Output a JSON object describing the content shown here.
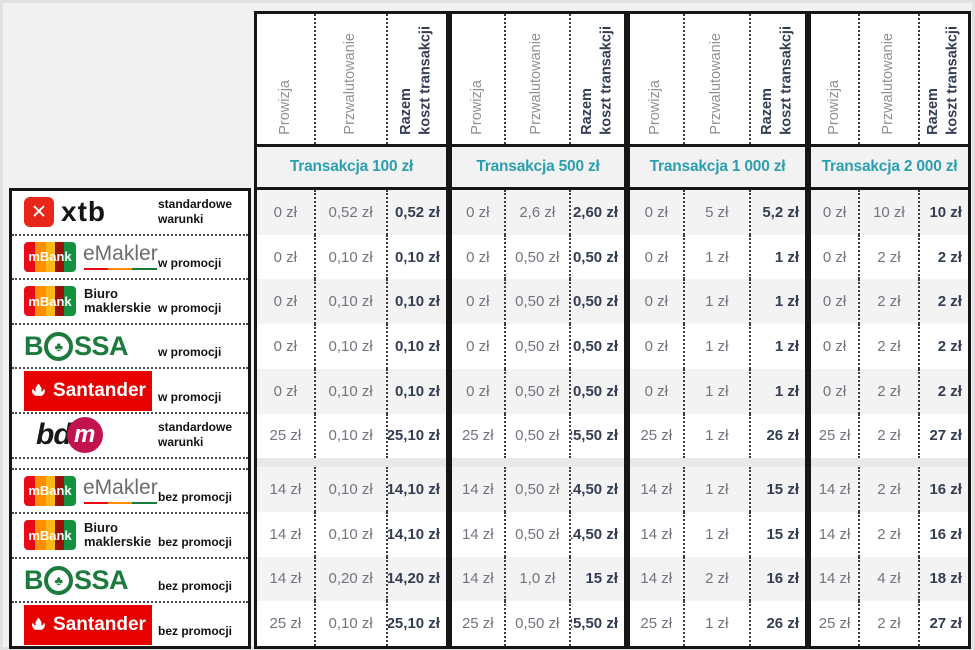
{
  "table": {
    "column_headers": [
      "Prowizja",
      "Przwalutowanie",
      "Razem\nkoszt transakcji"
    ],
    "groups": [
      "Transakcja 100 zł",
      "Transakcja 500 zł",
      "Transakcja 1 000 zł",
      "Transakcja 2 000 zł"
    ],
    "rows": [
      {
        "broker": "XTB",
        "logo": "xtb-logo",
        "note": "standardowe warunki",
        "values": [
          "0 zł",
          "0,52 zł",
          "0,52 zł",
          "0 zł",
          "2,6 zł",
          "2,60 zł",
          "0 zł",
          "5 zł",
          "5,2 zł",
          "0 zł",
          "10 zł",
          "10 zł"
        ]
      },
      {
        "broker": "mBank eMakler",
        "logo": "mbank-emakler-logo",
        "note": "w promocji",
        "values": [
          "0 zł",
          "0,10 zł",
          "0,10 zł",
          "0 zł",
          "0,50 zł",
          "0,50 zł",
          "0 zł",
          "1 zł",
          "1 zł",
          "0 zł",
          "2 zł",
          "2 zł"
        ]
      },
      {
        "broker": "mBank Biuro maklerskie",
        "logo": "mbank-biuro-logo",
        "note": "w promocji",
        "values": [
          "0 zł",
          "0,10 zł",
          "0,10 zł",
          "0 zł",
          "0,50 zł",
          "0,50 zł",
          "0 zł",
          "1 zł",
          "1 zł",
          "0 zł",
          "2 zł",
          "2 zł"
        ]
      },
      {
        "broker": "BOSSA",
        "logo": "bossa-logo",
        "note": "w promocji",
        "values": [
          "0 zł",
          "0,10 zł",
          "0,10 zł",
          "0 zł",
          "0,50 zł",
          "0,50 zł",
          "0 zł",
          "1 zł",
          "1 zł",
          "0 zł",
          "2 zł",
          "2 zł"
        ]
      },
      {
        "broker": "Santander",
        "logo": "santander-logo",
        "note": "w promocji",
        "values": [
          "0 zł",
          "0,10 zł",
          "0,10 zł",
          "0 zł",
          "0,50 zł",
          "0,50 zł",
          "0 zł",
          "1 zł",
          "1 zł",
          "0 zł",
          "2 zł",
          "2 zł"
        ]
      },
      {
        "broker": "BDM",
        "logo": "bdm-logo",
        "note": "standardowe warunki",
        "values": [
          "25 zł",
          "0,10 zł",
          "25,10 zł",
          "25 zł",
          "0,50 zł",
          "25,50 zł",
          "25 zł",
          "1 zł",
          "26 zł",
          "25 zł",
          "2 zł",
          "27 zł"
        ]
      },
      {
        "broker": "mBank eMakler",
        "logo": "mbank-emakler-logo",
        "note": "bez promocji",
        "values": [
          "14 zł",
          "0,10 zł",
          "14,10 zł",
          "14 zł",
          "0,50 zł",
          "14,50 zł",
          "14 zł",
          "1 zł",
          "15 zł",
          "14 zł",
          "2 zł",
          "16 zł"
        ]
      },
      {
        "broker": "mBank Biuro maklerskie",
        "logo": "mbank-biuro-logo",
        "note": "bez promocji",
        "values": [
          "14 zł",
          "0,10 zł",
          "14,10 zł",
          "14 zł",
          "0,50 zł",
          "14,50 zł",
          "14 zł",
          "1 zł",
          "15 zł",
          "14 zł",
          "2 zł",
          "16 zł"
        ]
      },
      {
        "broker": "BOSSA",
        "logo": "bossa-logo",
        "note": "bez promocji",
        "values": [
          "14 zł",
          "0,20 zł",
          "14,20 zł",
          "14 zł",
          "1,0 zł",
          "15 zł",
          "14 zł",
          "2 zł",
          "16 zł",
          "14 zł",
          "4 zł",
          "18 zł"
        ]
      },
      {
        "broker": "Santander",
        "logo": "santander-logo",
        "note": "bez promocji",
        "values": [
          "25 zł",
          "0,10 zł",
          "25,10 zł",
          "25 zł",
          "0,50 zł",
          "25,50 zł",
          "25 zł",
          "1 zł",
          "26 zł",
          "25 zł",
          "2 zł",
          "27 zł"
        ]
      }
    ]
  },
  "logos": {
    "xtb": {
      "icon_glyph": "✕",
      "text": "xtb"
    },
    "mbank": {
      "text": "mBank"
    },
    "emakler": {
      "text": "eMakler"
    },
    "biuro": {
      "line1": "Biuro",
      "line2": "maklerskie"
    },
    "bossa": {
      "b": "B",
      "clover": "♣",
      "rest": "SSA"
    },
    "santander": {
      "text": "Santander"
    },
    "bdm": {
      "bd": "bd",
      "m": "m"
    }
  },
  "colors": {
    "accent_teal": "#2b9fb0",
    "navy_bold": "#333e52",
    "value_gray": "#71757e",
    "header_gray": "#8d9199",
    "xtb_red": "#e8271b",
    "santander_red": "#e60000",
    "bossa_green": "#1c7a3d",
    "bdm_magenta": "#c2134f",
    "mbank_stripes": [
      "#e90a17",
      "#ff8f00",
      "#fdb913",
      "#9c1006",
      "#14913f"
    ],
    "emakler_gray": "#6b6c6f"
  },
  "chart_data": {
    "type": "table",
    "column_groups": [
      "Transakcja 100 zł",
      "Transakcja 500 zł",
      "Transakcja 1 000 zł",
      "Transakcja 2 000 zł"
    ],
    "columns_per_group": [
      "Prowizja",
      "Przwalutowanie",
      "Razem koszt transakcji"
    ],
    "rows": [
      {
        "broker": "XTB",
        "variant": "standardowe warunki",
        "values": [
          "0 zł",
          "0,52 zł",
          "0,52 zł",
          "0 zł",
          "2,6 zł",
          "2,60 zł",
          "0 zł",
          "5 zł",
          "5,2 zł",
          "0 zł",
          "10 zł",
          "10 zł"
        ]
      },
      {
        "broker": "mBank eMakler",
        "variant": "w promocji",
        "values": [
          "0 zł",
          "0,10 zł",
          "0,10 zł",
          "0 zł",
          "0,50 zł",
          "0,50 zł",
          "0 zł",
          "1 zł",
          "1 zł",
          "0 zł",
          "2 zł",
          "2 zł"
        ]
      },
      {
        "broker": "mBank Biuro maklerskie",
        "variant": "w promocji",
        "values": [
          "0 zł",
          "0,10 zł",
          "0,10 zł",
          "0 zł",
          "0,50 zł",
          "0,50 zł",
          "0 zł",
          "1 zł",
          "1 zł",
          "0 zł",
          "2 zł",
          "2 zł"
        ]
      },
      {
        "broker": "BOSSA",
        "variant": "w promocji",
        "values": [
          "0 zł",
          "0,10 zł",
          "0,10 zł",
          "0 zł",
          "0,50 zł",
          "0,50 zł",
          "0 zł",
          "1 zł",
          "1 zł",
          "0 zł",
          "2 zł",
          "2 zł"
        ]
      },
      {
        "broker": "Santander",
        "variant": "w promocji",
        "values": [
          "0 zł",
          "0,10 zł",
          "0,10 zł",
          "0 zł",
          "0,50 zł",
          "0,50 zł",
          "0 zł",
          "1 zł",
          "1 zł",
          "0 zł",
          "2 zł",
          "2 zł"
        ]
      },
      {
        "broker": "BDM",
        "variant": "standardowe warunki",
        "values": [
          "25 zł",
          "0,10 zł",
          "25,10 zł",
          "25 zł",
          "0,50 zł",
          "25,50 zł",
          "25 zł",
          "1 zł",
          "26 zł",
          "25 zł",
          "2 zł",
          "27 zł"
        ]
      },
      {
        "broker": "mBank eMakler",
        "variant": "bez promocji",
        "values": [
          "14 zł",
          "0,10 zł",
          "14,10 zł",
          "14 zł",
          "0,50 zł",
          "14,50 zł",
          "14 zł",
          "1 zł",
          "15 zł",
          "14 zł",
          "2 zł",
          "16 zł"
        ]
      },
      {
        "broker": "mBank Biuro maklerskie",
        "variant": "bez promocji",
        "values": [
          "14 zł",
          "0,10 zł",
          "14,10 zł",
          "14 zł",
          "0,50 zł",
          "14,50 zł",
          "14 zł",
          "1 zł",
          "15 zł",
          "14 zł",
          "2 zł",
          "16 zł"
        ]
      },
      {
        "broker": "BOSSA",
        "variant": "bez promocji",
        "values": [
          "14 zł",
          "0,20 zł",
          "14,20 zł",
          "14 zł",
          "1,0 zł",
          "15 zł",
          "14 zł",
          "2 zł",
          "16 zł",
          "14 zł",
          "4 zł",
          "18 zł"
        ]
      },
      {
        "broker": "Santander",
        "variant": "bez promocji",
        "values": [
          "25 zł",
          "0,10 zł",
          "25,10 zł",
          "25 zł",
          "0,50 zł",
          "25,50 zł",
          "25 zł",
          "1 zł",
          "26 zł",
          "25 zł",
          "2 zł",
          "27 zł"
        ]
      }
    ]
  }
}
